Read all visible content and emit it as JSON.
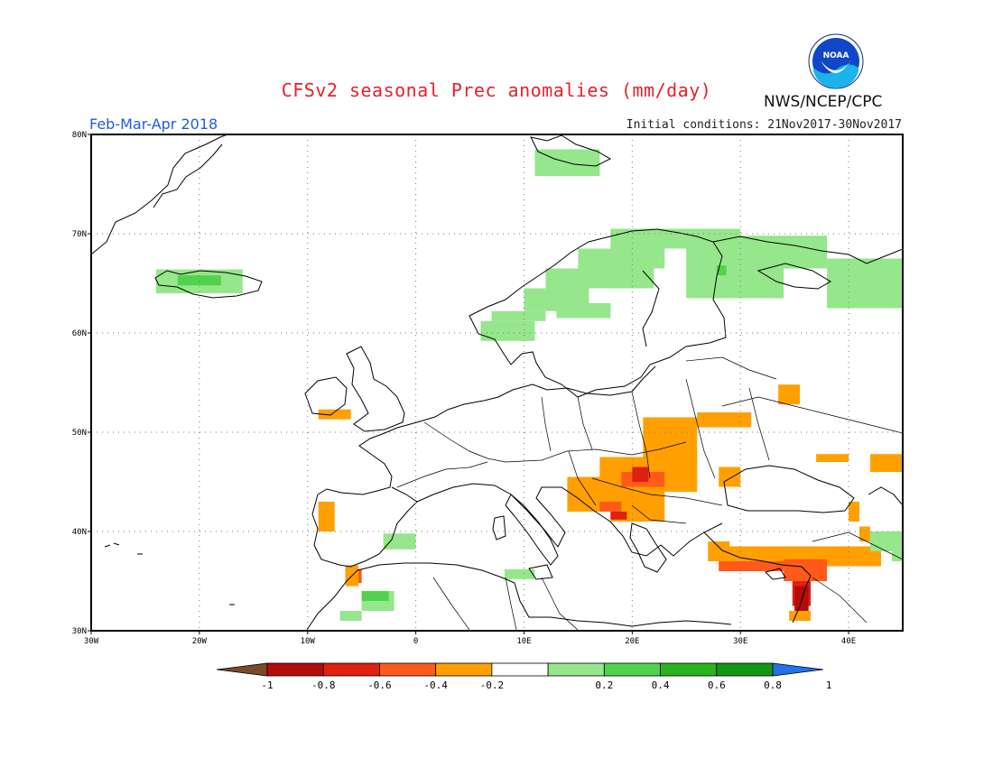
{
  "header": {
    "title": "CFSv2 seasonal Prec anomalies (mm/day)",
    "agency": "NWS/NCEP/CPC",
    "logo_text": "NOAA",
    "season": "Feb-Mar-Apr 2018",
    "initial_conditions": "Initial conditions: 21Nov2017-30Nov2017"
  },
  "map": {
    "region": "Europe",
    "lon_range": [
      -30,
      45
    ],
    "lat_range": [
      30,
      80
    ],
    "lat_ticks": [
      {
        "value": 80,
        "label": "80N"
      },
      {
        "value": 70,
        "label": "70N"
      },
      {
        "value": 60,
        "label": "60N"
      },
      {
        "value": 50,
        "label": "50N"
      },
      {
        "value": 40,
        "label": "40N"
      },
      {
        "value": 30,
        "label": "30N"
      }
    ],
    "lon_ticks": [
      {
        "value": -30,
        "label": "30W"
      },
      {
        "value": -20,
        "label": "20W"
      },
      {
        "value": -10,
        "label": "10W"
      },
      {
        "value": 0,
        "label": "0"
      },
      {
        "value": 10,
        "label": "10E"
      },
      {
        "value": 20,
        "label": "20E"
      },
      {
        "value": 30,
        "label": "30E"
      },
      {
        "value": 40,
        "label": "40E"
      }
    ],
    "grid": "dotted"
  },
  "legend": {
    "labels": [
      "-1",
      "-0.8",
      "-0.6",
      "-0.4",
      "-0.2",
      "0.2",
      "0.4",
      "0.6",
      "0.8",
      "1"
    ],
    "colors": [
      "#7a4a2a",
      "#b40c0c",
      "#e02010",
      "#ff5a1a",
      "#ffa000",
      "#ffffff",
      "#96e68c",
      "#50d24c",
      "#28b41e",
      "#139615",
      "#2272e8"
    ]
  },
  "anomaly_colors": {
    "light_green": "#96e68c",
    "green": "#50d24c",
    "orange": "#ffa000",
    "red_orange": "#ff5a1a",
    "red": "#e02010",
    "dark_red": "#b40c0c"
  }
}
